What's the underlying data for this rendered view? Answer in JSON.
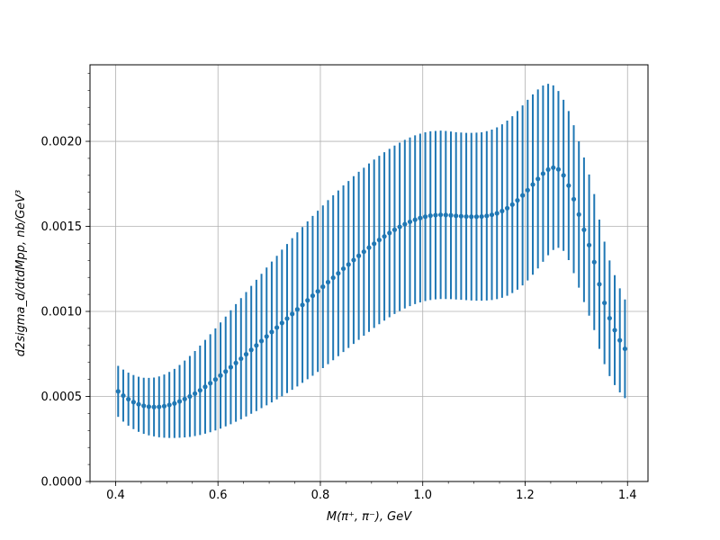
{
  "chart_data": {
    "type": "scatter",
    "xlabel": "M(π⁺, π⁻), GeV",
    "ylabel": "d2sigma_d/dtdMpp, nb/GeV³",
    "xlim": [
      0.35,
      1.44
    ],
    "ylim": [
      0.0,
      0.00245
    ],
    "xticks": [
      0.4,
      0.6,
      0.8,
      1.0,
      1.2,
      1.4
    ],
    "xtick_labels": [
      "0.4",
      "0.6",
      "0.8",
      "1.0",
      "1.2",
      "1.4"
    ],
    "yticks": [
      0.0,
      0.0005,
      0.001,
      0.0015,
      0.002
    ],
    "ytick_labels": [
      "0.0000",
      "0.0005",
      "0.0010",
      "0.0015",
      "0.0020"
    ],
    "grid": true,
    "color": "#1f77b4",
    "series": [
      {
        "x": [
          0.405,
          0.415,
          0.425,
          0.435,
          0.445,
          0.455,
          0.465,
          0.475,
          0.485,
          0.495,
          0.505,
          0.515,
          0.525,
          0.535,
          0.545,
          0.555,
          0.565,
          0.575,
          0.585,
          0.595,
          0.605,
          0.615,
          0.625,
          0.635,
          0.645,
          0.655,
          0.665,
          0.675,
          0.685,
          0.695,
          0.705,
          0.715,
          0.725,
          0.735,
          0.745,
          0.755,
          0.765,
          0.775,
          0.785,
          0.795,
          0.805,
          0.815,
          0.825,
          0.835,
          0.845,
          0.855,
          0.865,
          0.875,
          0.885,
          0.895,
          0.905,
          0.915,
          0.925,
          0.935,
          0.945,
          0.955,
          0.965,
          0.975,
          0.985,
          0.995,
          1.005,
          1.015,
          1.025,
          1.035,
          1.045,
          1.055,
          1.065,
          1.075,
          1.085,
          1.095,
          1.105,
          1.115,
          1.125,
          1.135,
          1.145,
          1.155,
          1.165,
          1.175,
          1.185,
          1.195,
          1.205,
          1.215,
          1.225,
          1.235,
          1.245,
          1.255,
          1.265,
          1.275,
          1.285,
          1.295,
          1.305,
          1.315,
          1.325,
          1.335,
          1.345,
          1.355,
          1.365,
          1.375,
          1.385,
          1.395
        ],
        "y": [
          0.00053,
          0.000505,
          0.000484,
          0.000467,
          0.000454,
          0.000445,
          0.00044,
          0.000438,
          0.000439,
          0.000443,
          0.00045,
          0.000459,
          0.000471,
          0.000485,
          0.0005,
          0.000517,
          0.000536,
          0.000557,
          0.000578,
          0.0006,
          0.000623,
          0.000647,
          0.000672,
          0.000697,
          0.000722,
          0.000748,
          0.000774,
          0.0008,
          0.000826,
          0.000853,
          0.000879,
          0.000905,
          0.000932,
          0.000958,
          0.000985,
          0.001012,
          0.001038,
          0.001065,
          0.001092,
          0.001118,
          0.001145,
          0.001172,
          0.001198,
          0.001224,
          0.001251,
          0.001276,
          0.001302,
          0.001327,
          0.001351,
          0.001375,
          0.001398,
          0.00142,
          0.001441,
          0.001461,
          0.00148,
          0.001497,
          0.001513,
          0.001527,
          0.001539,
          0.001549,
          0.001557,
          0.001563,
          0.001566,
          0.001568,
          0.001567,
          0.001565,
          0.001562,
          0.00156,
          0.001558,
          0.001557,
          0.001557,
          0.001558,
          0.001562,
          0.001568,
          0.001577,
          0.00159,
          0.001607,
          0.001628,
          0.001653,
          0.001682,
          0.001713,
          0.001746,
          0.001779,
          0.00181,
          0.001834,
          0.001845,
          0.001835,
          0.0018,
          0.00174,
          0.00166,
          0.00157,
          0.00148,
          0.00139,
          0.00129,
          0.00116,
          0.00105,
          0.00096,
          0.00089,
          0.00083,
          0.00078
        ],
        "yerr_low": [
          0.00038,
          0.000352,
          0.000328,
          0.000308,
          0.000292,
          0.00028,
          0.000271,
          0.000265,
          0.00026,
          0.000257,
          0.000256,
          0.000256,
          0.000257,
          0.000259,
          0.000262,
          0.000267,
          0.000273,
          0.000281,
          0.00029,
          0.0003,
          0.000311,
          0.000324,
          0.000337,
          0.000351,
          0.000366,
          0.000382,
          0.000398,
          0.000414,
          0.000431,
          0.000448,
          0.000465,
          0.000483,
          0.000501,
          0.00052,
          0.000539,
          0.000559,
          0.00058,
          0.000601,
          0.000622,
          0.000644,
          0.000667,
          0.00069,
          0.000713,
          0.000737,
          0.000761,
          0.000785,
          0.000809,
          0.000833,
          0.000857,
          0.00088,
          0.000903,
          0.000925,
          0.000946,
          0.000966,
          0.000985,
          0.001002,
          0.001017,
          0.001031,
          0.001043,
          0.001053,
          0.001061,
          0.001067,
          0.001071,
          0.001073,
          0.001073,
          0.001072,
          0.00107,
          0.001068,
          0.001066,
          0.001064,
          0.001063,
          0.001063,
          0.001064,
          0.001067,
          0.001072,
          0.00108,
          0.001092,
          0.001108,
          0.001128,
          0.001153,
          0.001182,
          0.001216,
          0.001253,
          0.001292,
          0.00133,
          0.001361,
          0.001374,
          0.001356,
          0.001302,
          0.001225,
          0.00114,
          0.001055,
          0.000975,
          0.00089,
          0.00078,
          0.00069,
          0.00062,
          0.000567,
          0.000524,
          0.00049
        ],
        "yerr_high": [
          0.00068,
          0.000658,
          0.00064,
          0.000626,
          0.000616,
          0.00061,
          0.000609,
          0.000611,
          0.000618,
          0.000629,
          0.000644,
          0.000662,
          0.000685,
          0.000711,
          0.000738,
          0.000767,
          0.000799,
          0.000833,
          0.000866,
          0.0009,
          0.000935,
          0.00097,
          0.001007,
          0.001043,
          0.001078,
          0.001114,
          0.00115,
          0.001186,
          0.001221,
          0.001258,
          0.001293,
          0.001327,
          0.001363,
          0.001396,
          0.001431,
          0.001465,
          0.001496,
          0.001529,
          0.001562,
          0.001592,
          0.001623,
          0.001654,
          0.001683,
          0.001711,
          0.001741,
          0.001767,
          0.001795,
          0.001821,
          0.001845,
          0.00187,
          0.001893,
          0.001915,
          0.001936,
          0.001956,
          0.001975,
          0.001992,
          0.002009,
          0.002023,
          0.002035,
          0.002045,
          0.002053,
          0.002059,
          0.002061,
          0.002063,
          0.002061,
          0.002058,
          0.002054,
          0.002052,
          0.00205,
          0.00205,
          0.002051,
          0.002053,
          0.00206,
          0.002069,
          0.002082,
          0.0021,
          0.002122,
          0.002148,
          0.002178,
          0.002211,
          0.002244,
          0.002276,
          0.002305,
          0.002328,
          0.002338,
          0.002329,
          0.002296,
          0.002244,
          0.002178,
          0.002095,
          0.002,
          0.001905,
          0.001805,
          0.00169,
          0.00154,
          0.00141,
          0.0013,
          0.001213,
          0.001136,
          0.00107
        ]
      }
    ]
  }
}
